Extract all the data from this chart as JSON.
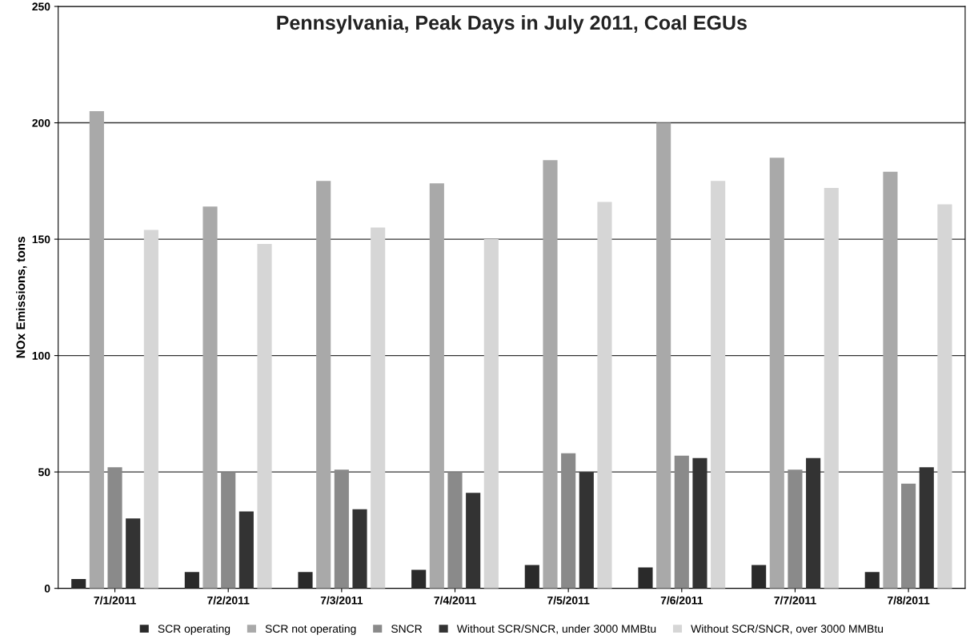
{
  "chart_data": {
    "type": "bar",
    "title": "Pennsylvania, Peak Days in July 2011, Coal EGUs",
    "ylabel": "NOx Emissions, tons",
    "categories": [
      "7/1/2011",
      "7/2/2011",
      "7/3/2011",
      "7/4/2011",
      "7/5/2011",
      "7/6/2011",
      "7/7/2011",
      "7/8/2011"
    ],
    "series": [
      {
        "name": "SCR operating",
        "color": "#2a2a2a",
        "values": [
          4,
          7,
          7,
          8,
          10,
          9,
          10,
          7
        ]
      },
      {
        "name": "SCR not operating",
        "color": "#a9a9a9",
        "values": [
          205,
          164,
          175,
          174,
          184,
          200,
          185,
          179
        ]
      },
      {
        "name": "SNCR",
        "color": "#8a8a8a",
        "values": [
          52,
          50,
          51,
          50,
          58,
          57,
          51,
          45
        ]
      },
      {
        "name": "Without SCR/SNCR, under 3000 MMBtu",
        "color": "#333333",
        "values": [
          30,
          33,
          34,
          41,
          50,
          56,
          56,
          52
        ]
      },
      {
        "name": "Without SCR/SNCR, over 3000 MMBtu",
        "color": "#d6d6d6",
        "values": [
          154,
          148,
          155,
          150,
          166,
          175,
          172,
          165
        ]
      }
    ],
    "ylim": [
      0,
      250
    ],
    "yticks": [
      0,
      50,
      100,
      150,
      200,
      250
    ],
    "grid": "y",
    "legend": "bottom"
  }
}
